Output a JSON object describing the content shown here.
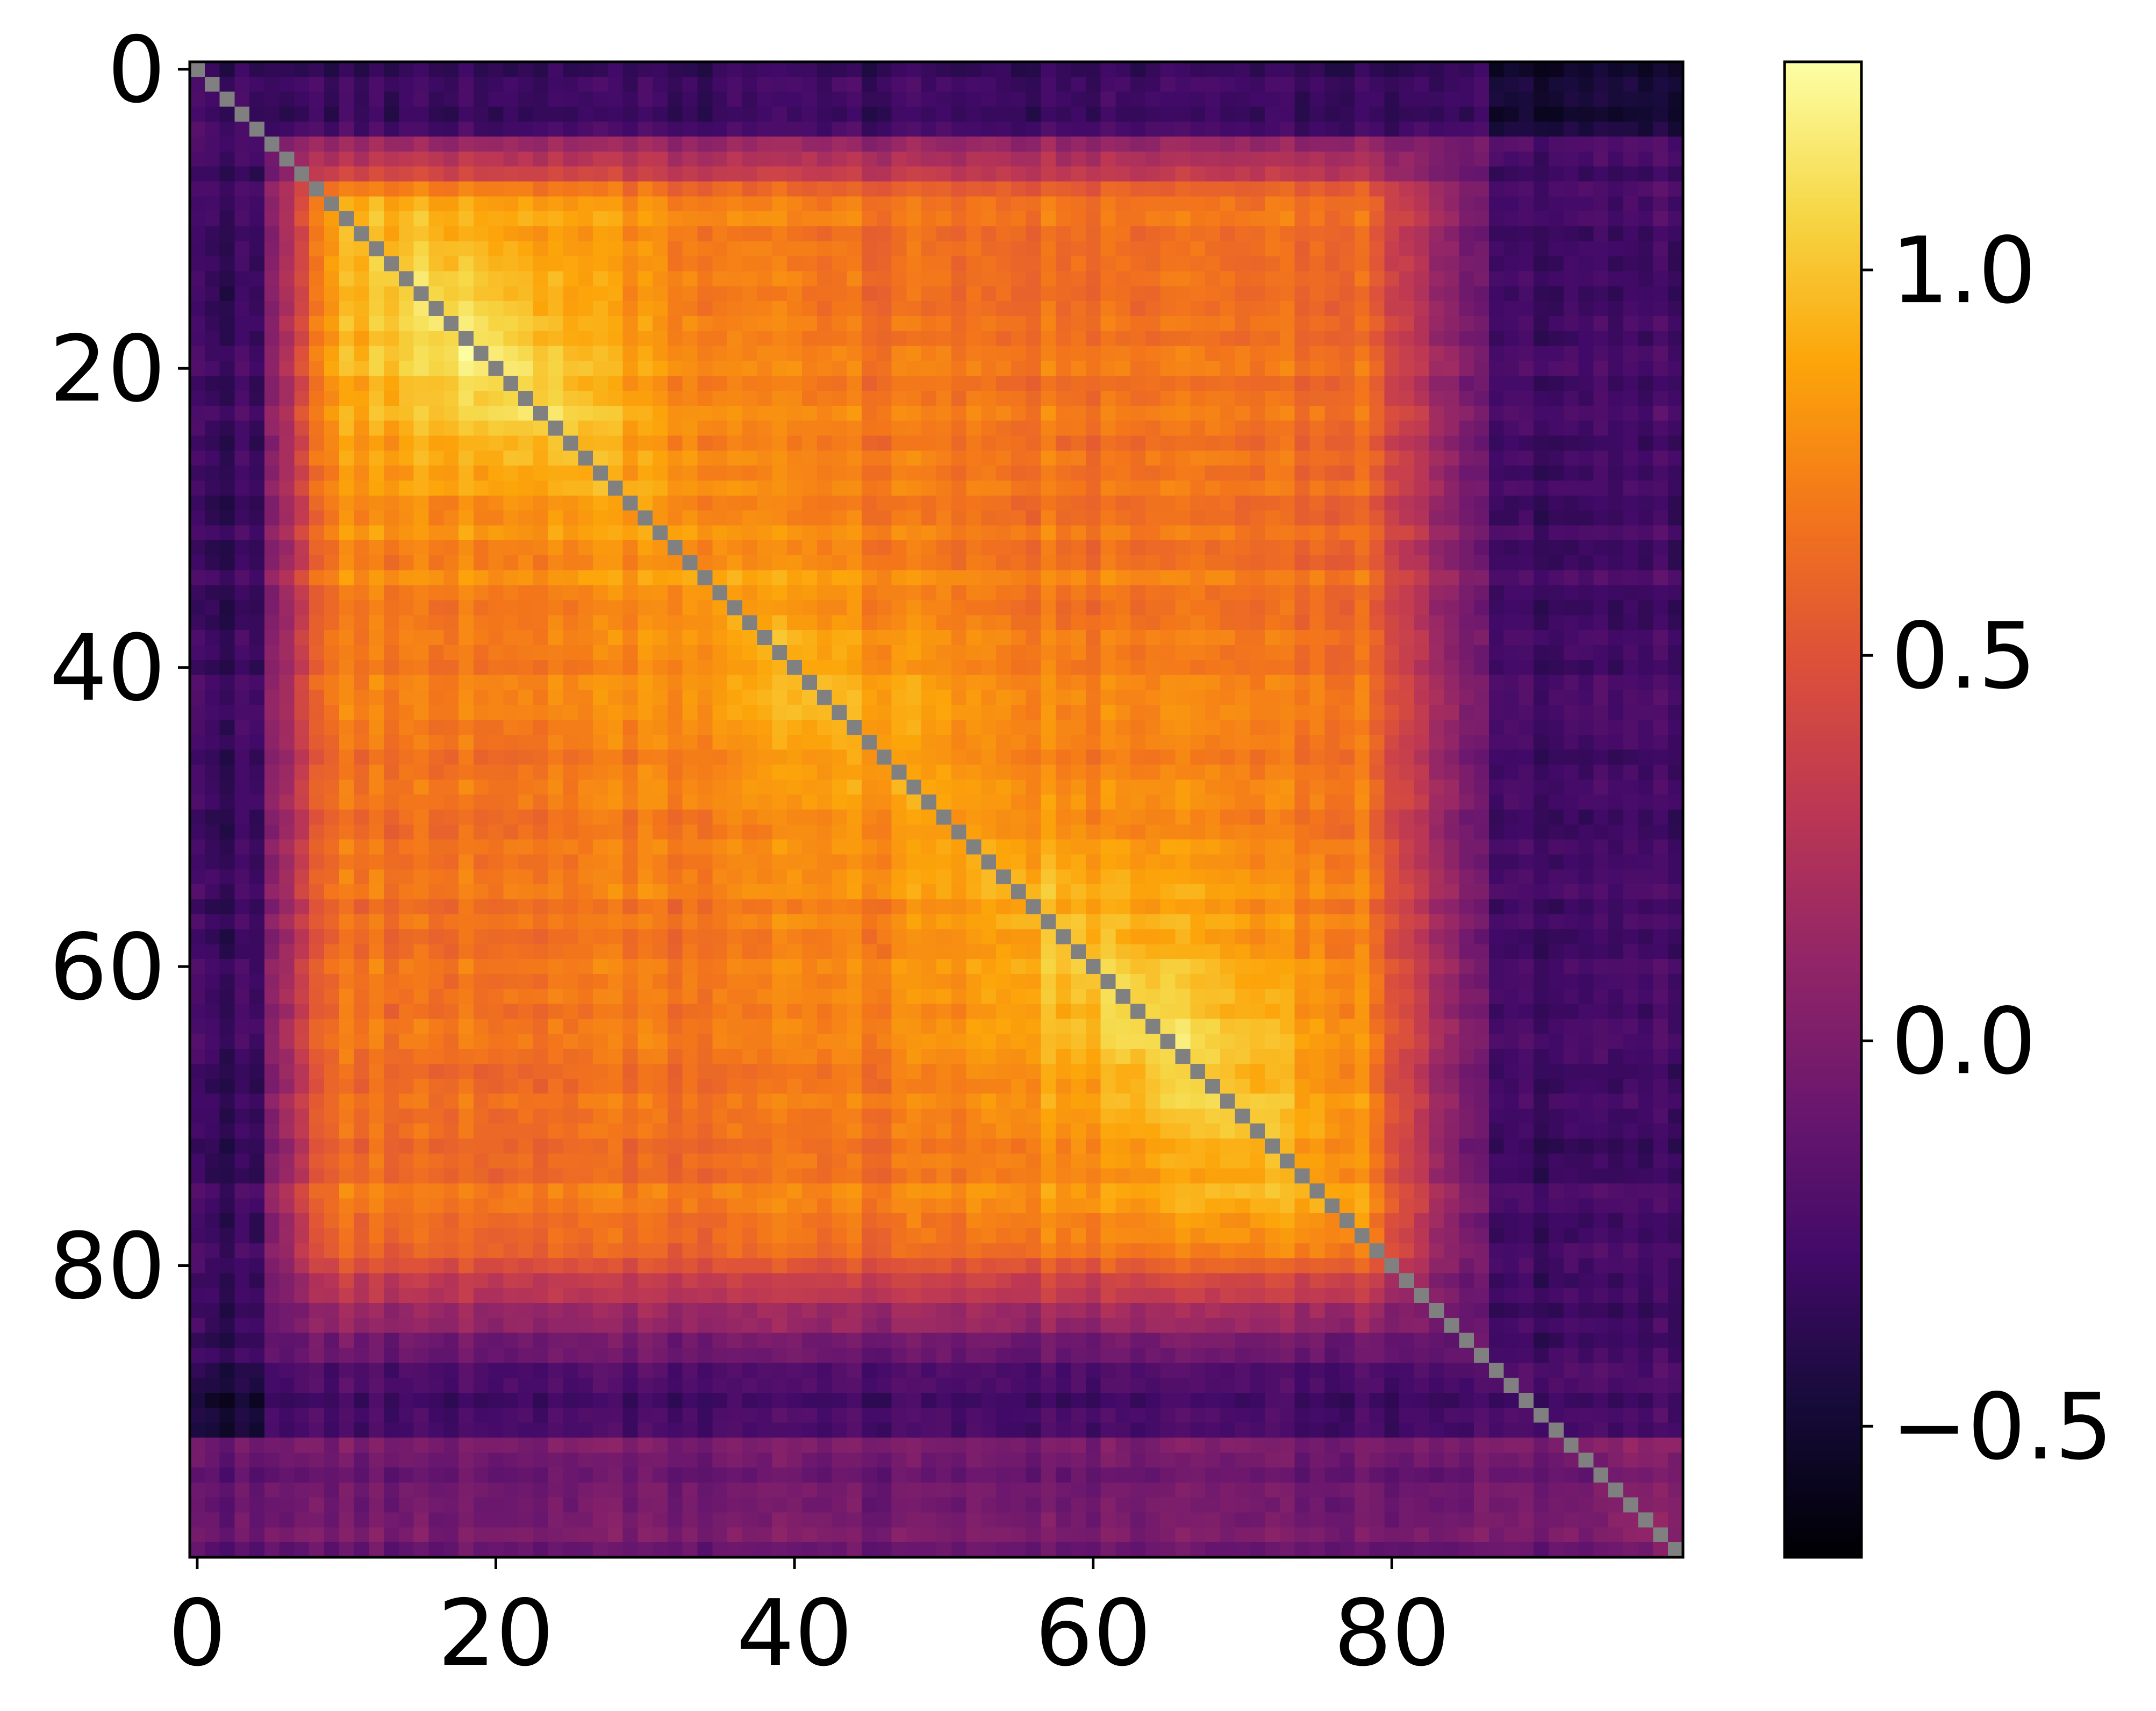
{
  "chart_data": {
    "type": "heatmap",
    "title": "",
    "xlabel": "",
    "ylabel": "",
    "size": 100,
    "x_ticks": [
      0,
      20,
      40,
      60,
      80
    ],
    "y_ticks": [
      0,
      20,
      40,
      60,
      80
    ],
    "x_tick_labels": [
      "0",
      "20",
      "40",
      "60",
      "80"
    ],
    "y_tick_labels": [
      "0",
      "20",
      "40",
      "60",
      "80"
    ],
    "xlim": [
      -0.5,
      99.5
    ],
    "ylim": [
      99.5,
      -0.5
    ],
    "diagonal_masked": true,
    "diagonal_color": "#808080",
    "colormap": "inferno",
    "colorbar": {
      "vmin": -0.67,
      "vmax": 1.27,
      "ticks": [
        -0.5,
        0.0,
        0.5,
        1.0
      ],
      "tick_labels": [
        "−0.5",
        "0.0",
        "0.5",
        "1.0"
      ]
    },
    "structure_summary": {
      "high_block_1": {
        "rows": [
          8,
          30
        ],
        "cols": [
          8,
          30
        ],
        "peak": 1.2
      },
      "high_block_2": {
        "rows": [
          45,
          80
        ],
        "cols": [
          45,
          80
        ],
        "peak": 1.1
      },
      "off_diagonal_band": {
        "rows": [
          25,
          85
        ],
        "cols": [
          10,
          60
        ],
        "value": 0.55
      },
      "low_left_columns": {
        "cols": [
          0,
          5
        ],
        "value": -0.3
      },
      "low_right_columns": {
        "cols": [
          85,
          99
        ],
        "value": -0.4
      },
      "bottom_rows": {
        "rows": [
          92,
          99
        ],
        "value": 0.0
      }
    }
  }
}
